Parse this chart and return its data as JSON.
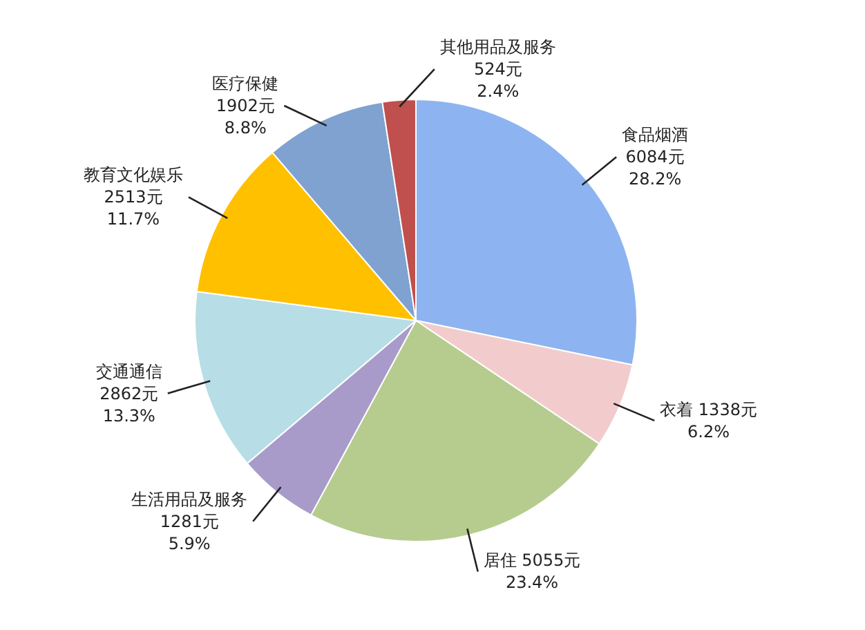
{
  "chart_data": {
    "type": "pie",
    "categories": [
      "食品烟酒",
      "衣着",
      "居住",
      "生活用品及服务",
      "交通通信",
      "教育文化娱乐",
      "医疗保健",
      "其他用品及服务"
    ],
    "values": [
      6084,
      1338,
      5055,
      1281,
      2862,
      2513,
      1902,
      524
    ],
    "value_labels": [
      "6084元\n28.2%",
      "1338元\n6.2%",
      "5055元\n23.4%",
      "1281元\n5.9%",
      "2862元\n13.3%",
      "2513元\n11.7%",
      "1902元\n8.8%",
      "524元\n2.4%"
    ],
    "colors": [
      "#8db4f0",
      "#f2cccc",
      "#b5cc8e",
      "#a99bc9",
      "#b7dde6",
      "#ffc000",
      "#7fa2d0",
      "#c0504d"
    ],
    "legend": false
  }
}
